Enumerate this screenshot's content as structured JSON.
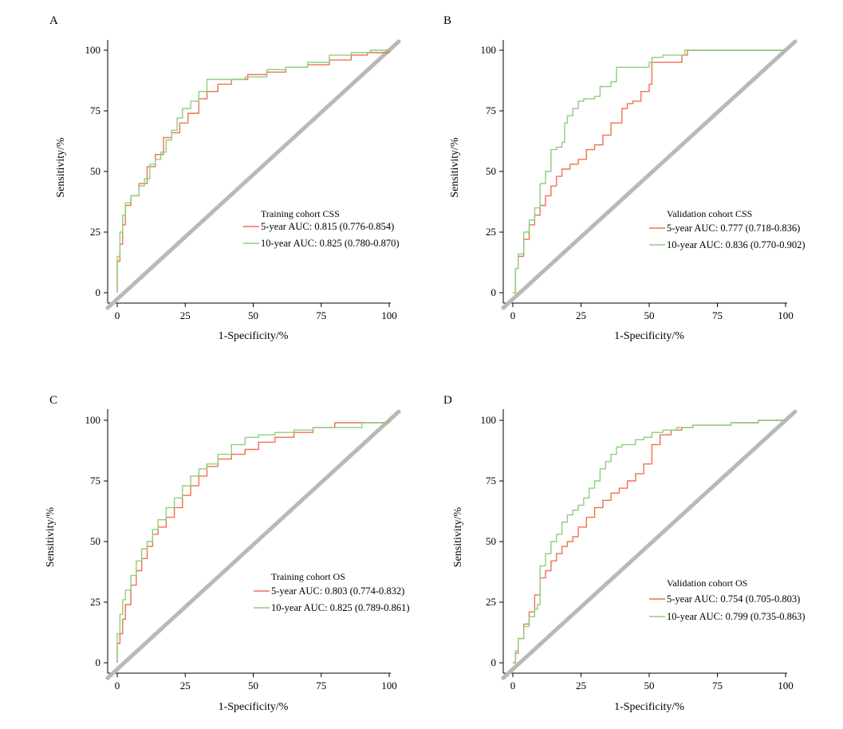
{
  "colors": {
    "five_year": "#f0704e",
    "ten_year": "#8ccf7e",
    "reference": "#b9b9b9",
    "axis": "#000000"
  },
  "chart_data": [
    {
      "panel": "A",
      "type": "line",
      "xlabel": "1-Specificity/%",
      "ylabel": "Sensitivity/%",
      "xlim": [
        0,
        100
      ],
      "ylim": [
        0,
        100
      ],
      "xticks": [
        "0",
        "25",
        "50",
        "75",
        "100"
      ],
      "yticks": [
        "0",
        "25",
        "50",
        "75",
        "100"
      ],
      "grid": false,
      "legend_position": "lower-right",
      "legend_title": "Training cohort CSS",
      "series": [
        {
          "name": "5-year AUC: 0.815 (0.776-0.854)",
          "color_key": "five_year",
          "x": [
            0,
            0,
            1,
            2,
            3,
            5,
            8,
            11,
            14,
            17,
            20,
            23,
            26,
            30,
            33,
            37,
            42,
            48,
            55,
            62,
            70,
            78,
            86,
            92,
            97,
            100
          ],
          "y": [
            0,
            13,
            20,
            28,
            36,
            40,
            45,
            52,
            57,
            64,
            66,
            70,
            74,
            80,
            83,
            86,
            88,
            90,
            91,
            93,
            94,
            96,
            98,
            99,
            99,
            100
          ]
        },
        {
          "name": "10-year AUC: 0.825 (0.780-0.870)",
          "color_key": "ten_year",
          "x": [
            0,
            0,
            1,
            2,
            3,
            5,
            8,
            10,
            12,
            14,
            16,
            18,
            20,
            22,
            24,
            27,
            30,
            33,
            40,
            47,
            55,
            62,
            70,
            78,
            86,
            93,
            100
          ],
          "y": [
            0,
            15,
            25,
            32,
            37,
            40,
            44,
            47,
            53,
            55,
            58,
            63,
            67,
            72,
            76,
            79,
            83,
            88,
            88,
            89,
            92,
            93,
            95,
            98,
            99,
            100,
            100
          ]
        }
      ]
    },
    {
      "panel": "B",
      "type": "line",
      "xlabel": "1-Specificity/%",
      "ylabel": "Sensitivity/%",
      "xlim": [
        0,
        100
      ],
      "ylim": [
        0,
        100
      ],
      "xticks": [
        "0",
        "25",
        "50",
        "75",
        "100"
      ],
      "yticks": [
        "0",
        "25",
        "50",
        "75",
        "100"
      ],
      "grid": false,
      "legend_position": "lower-right",
      "legend_title": "Validation cohort CSS",
      "series": [
        {
          "name": "5-year AUC: 0.777 (0.718-0.836)",
          "color_key": "five_year",
          "x": [
            0,
            1,
            2,
            4,
            6,
            8,
            10,
            12,
            14,
            16,
            18,
            21,
            24,
            27,
            30,
            33,
            36,
            40,
            42,
            44,
            47,
            50,
            51,
            55,
            59,
            62,
            64,
            70,
            80,
            90,
            100
          ],
          "y": [
            0,
            10,
            15,
            22,
            28,
            32,
            36,
            40,
            44,
            48,
            51,
            53,
            55,
            59,
            61,
            65,
            70,
            76,
            78,
            79,
            83,
            86,
            95,
            95,
            95,
            98,
            100,
            100,
            100,
            100,
            100
          ]
        },
        {
          "name": "10-year AUC: 0.836 (0.770-0.902)",
          "color_key": "ten_year",
          "x": [
            0,
            1,
            2,
            4,
            6,
            8,
            10,
            12,
            14,
            16,
            18,
            19,
            20,
            22,
            24,
            26,
            30,
            32,
            34,
            36,
            38,
            40,
            45,
            50,
            51,
            55,
            60,
            63,
            70,
            80,
            90,
            100
          ],
          "y": [
            0,
            10,
            16,
            25,
            30,
            35,
            45,
            50,
            59,
            60,
            62,
            70,
            73,
            76,
            79,
            80,
            81,
            85,
            85,
            87,
            93,
            93,
            93,
            95,
            97,
            98,
            98,
            100,
            100,
            100,
            100,
            100
          ]
        }
      ]
    },
    {
      "panel": "C",
      "type": "line",
      "xlabel": "1-Specificity/%",
      "ylabel": "Sensitivity/%",
      "xlim": [
        0,
        100
      ],
      "ylim": [
        0,
        100
      ],
      "xticks": [
        "0",
        "25",
        "50",
        "75",
        "100"
      ],
      "yticks": [
        "0",
        "25",
        "50",
        "75",
        "100"
      ],
      "grid": false,
      "legend_position": "lower-right",
      "legend_title": "Training cohort OS",
      "series": [
        {
          "name": "5-year AUC: 0.803 (0.774-0.832)",
          "color_key": "five_year",
          "x": [
            0,
            0,
            1,
            2,
            3,
            5,
            7,
            9,
            11,
            13,
            15,
            18,
            21,
            24,
            27,
            30,
            33,
            37,
            42,
            47,
            52,
            58,
            65,
            72,
            80,
            90,
            100
          ],
          "y": [
            0,
            8,
            12,
            18,
            24,
            32,
            38,
            43,
            48,
            53,
            56,
            60,
            64,
            69,
            73,
            77,
            81,
            84,
            86,
            88,
            91,
            93,
            95,
            97,
            99,
            99,
            100
          ]
        },
        {
          "name": "10-year AUC: 0.825 (0.789-0.861)",
          "color_key": "ten_year",
          "x": [
            0,
            0,
            1,
            2,
            3,
            5,
            7,
            9,
            11,
            13,
            15,
            18,
            21,
            24,
            27,
            30,
            33,
            37,
            42,
            47,
            52,
            58,
            65,
            72,
            80,
            90,
            100
          ],
          "y": [
            0,
            12,
            20,
            26,
            30,
            36,
            42,
            47,
            50,
            55,
            59,
            64,
            68,
            73,
            77,
            80,
            82,
            86,
            90,
            93,
            94,
            95,
            96,
            97,
            97,
            99,
            100
          ]
        }
      ]
    },
    {
      "panel": "D",
      "type": "line",
      "xlabel": "1-Specificity/%",
      "ylabel": "Sensitivity/%",
      "xlim": [
        0,
        100
      ],
      "ylim": [
        0,
        100
      ],
      "xticks": [
        "0",
        "25",
        "50",
        "75",
        "100"
      ],
      "yticks": [
        "0",
        "25",
        "50",
        "75",
        "100"
      ],
      "grid": false,
      "legend_position": "lower-right",
      "legend_title": "Validation cohort OS",
      "series": [
        {
          "name": "5-year AUC: 0.754 (0.705-0.803)",
          "color_key": "five_year",
          "x": [
            0,
            1,
            2,
            4,
            6,
            8,
            10,
            12,
            14,
            16,
            18,
            20,
            22,
            24,
            27,
            30,
            33,
            36,
            39,
            42,
            45,
            48,
            51,
            54,
            58,
            62,
            66,
            72,
            80,
            90,
            100
          ],
          "y": [
            0,
            4,
            10,
            16,
            21,
            28,
            35,
            38,
            42,
            45,
            48,
            50,
            52,
            56,
            60,
            64,
            67,
            70,
            72,
            75,
            78,
            82,
            90,
            94,
            96,
            97,
            98,
            98,
            99,
            100,
            100
          ]
        },
        {
          "name": "10-year AUC: 0.799 (0.735-0.863)",
          "color_key": "ten_year",
          "x": [
            0,
            1,
            2,
            4,
            6,
            8,
            9,
            10,
            12,
            14,
            16,
            18,
            20,
            22,
            24,
            26,
            28,
            30,
            32,
            34,
            36,
            38,
            40,
            42,
            45,
            48,
            51,
            55,
            60,
            66,
            72,
            80,
            90,
            100
          ],
          "y": [
            0,
            5,
            10,
            15,
            19,
            22,
            24,
            40,
            45,
            50,
            53,
            58,
            61,
            63,
            65,
            68,
            72,
            75,
            80,
            83,
            86,
            89,
            90,
            90,
            92,
            93,
            95,
            96,
            97,
            98,
            98,
            99,
            100,
            100
          ]
        }
      ]
    }
  ]
}
